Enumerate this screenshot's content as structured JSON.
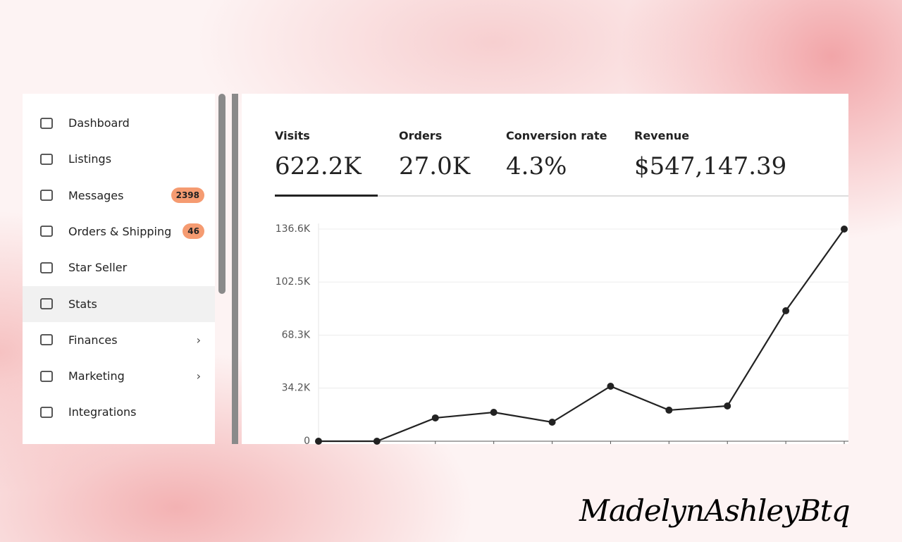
{
  "sidebar": {
    "items": [
      {
        "label": "Dashboard"
      },
      {
        "label": "Listings"
      },
      {
        "label": "Messages",
        "badge": 2398
      },
      {
        "label": "Orders & Shipping",
        "badge": 46
      },
      {
        "label": "Star Seller"
      },
      {
        "label": "Stats",
        "active": true
      },
      {
        "label": "Finances",
        "submenu": true
      },
      {
        "label": "Marketing",
        "submenu": true
      },
      {
        "label": "Integrations"
      }
    ]
  },
  "stats": [
    {
      "label": "Visits",
      "value": "622.2K",
      "selected": true
    },
    {
      "label": "Orders",
      "value": "27.0K"
    },
    {
      "label": "Conversion rate",
      "value": "4.3%"
    },
    {
      "label": "Revenue",
      "value": "$547,147.39"
    }
  ],
  "chart_data": {
    "type": "line",
    "categories": [
      null,
      null,
      null,
      null,
      null,
      null,
      null,
      null,
      null,
      null
    ],
    "values": [
      0,
      0,
      15000,
      18600,
      12250,
      35400,
      20000,
      22700,
      84000,
      136600
    ],
    "color": "#222222",
    "ylim": [
      0,
      136600
    ],
    "yticks": [
      0,
      {
        "value": 34200,
        "label": "34.2K"
      },
      {
        "value": 68300,
        "label": "68.3K"
      },
      {
        "value": 102500,
        "label": "102.5K"
      },
      {
        "value": 136600,
        "label": "136.6K"
      }
    ],
    "grid": true
  },
  "watermark": "MadelynAshleyBtq"
}
